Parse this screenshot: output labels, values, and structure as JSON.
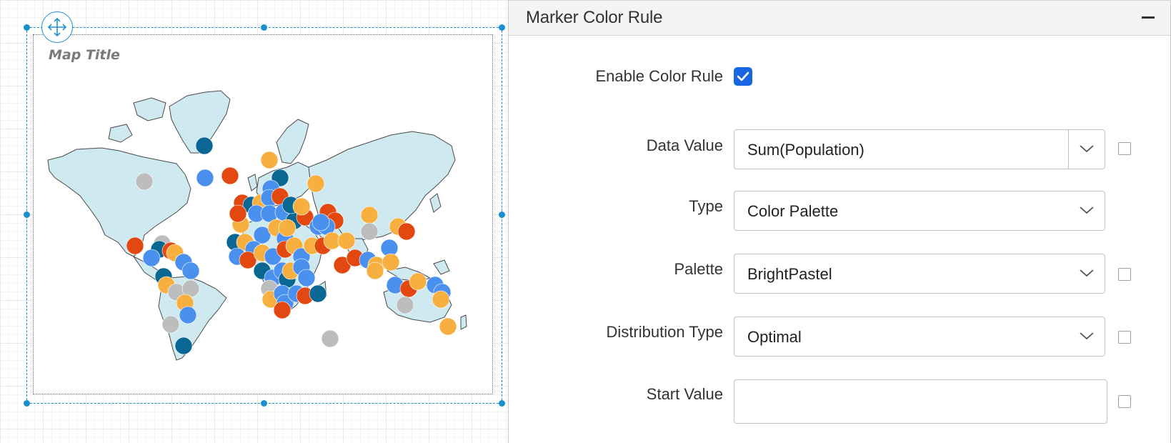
{
  "map": {
    "title": "Map Title",
    "country_fill": "#cfe9f0",
    "country_stroke": "#4a4a4a",
    "selection_color": "#1a8fd0",
    "marker_colors": {
      "teal": "#0a6692",
      "blue": "#4a90ee",
      "orange": "#e2480f",
      "yellow": "#f7b040",
      "gray": "#bdbdbd"
    }
  },
  "panel": {
    "title": "Marker Color Rule",
    "enable_color_rule": {
      "label": "Enable Color Rule",
      "checked": true
    },
    "data_value": {
      "label": "Data Value",
      "value": "Sum(Population)"
    },
    "type": {
      "label": "Type",
      "value": "Color Palette"
    },
    "palette": {
      "label": "Palette",
      "value": "BrightPastel"
    },
    "distribution_type": {
      "label": "Distribution Type",
      "value": "Optimal"
    },
    "start_value": {
      "label": "Start Value",
      "value": ""
    },
    "accent_color": "#1a66e0"
  }
}
